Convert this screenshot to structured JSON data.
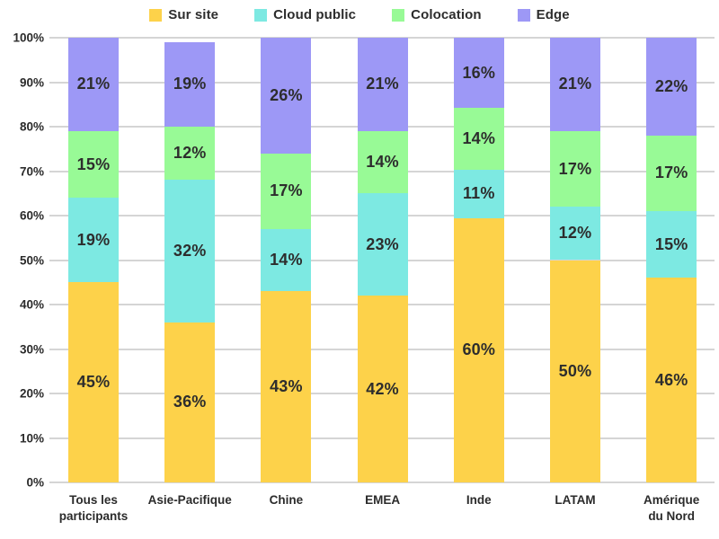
{
  "chart_data": {
    "type": "bar",
    "stacked": true,
    "percent": true,
    "title": "",
    "xlabel": "",
    "ylabel": "",
    "ylim": [
      0,
      100
    ],
    "grid": true,
    "legend_position": "top",
    "categories": [
      "Tous les\nparticipants",
      "Asie-Pacifique",
      "Chine",
      "EMEA",
      "Inde",
      "LATAM",
      "Amérique\ndu Nord"
    ],
    "y_ticks": [
      "0%",
      "10%",
      "20%",
      "30%",
      "40%",
      "50%",
      "60%",
      "70%",
      "80%",
      "90%",
      "100%"
    ],
    "series": [
      {
        "name": "Sur site",
        "color": "#FDD24A",
        "values": [
          45,
          36,
          43,
          42,
          60,
          50,
          46
        ]
      },
      {
        "name": "Cloud public",
        "color": "#7DE9E2",
        "values": [
          19,
          32,
          14,
          23,
          11,
          12,
          15
        ]
      },
      {
        "name": "Colocation",
        "color": "#98FA96",
        "values": [
          15,
          12,
          17,
          14,
          14,
          17,
          17
        ]
      },
      {
        "name": "Edge",
        "color": "#9D98F6",
        "values": [
          21,
          19,
          26,
          21,
          16,
          21,
          22
        ]
      }
    ],
    "segment_label_suffix": "%"
  },
  "colors": {
    "gridline": "#d5d5d5",
    "axis_line": "#cccccc",
    "text": "#2d2d2d"
  }
}
